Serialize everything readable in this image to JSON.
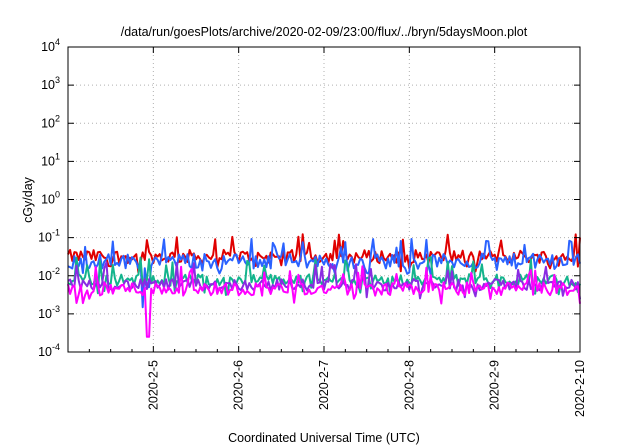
{
  "chart_data": {
    "type": "line",
    "title": "/data/run/goesPlots/archive/2020-02-09/23:00/flux/../bryn/5daysMoon.plot",
    "xlabel": "Coordinated Universal Time (UTC)",
    "ylabel": "cGy/day",
    "y_scale": "log",
    "ylim": [
      0.0001,
      10000
    ],
    "xlim": [
      "2020-02-04T00:00",
      "2020-02-10T00:00"
    ],
    "grid": true,
    "x_ticks": [
      "2020-2-5",
      "2020-2-6",
      "2020-2-7",
      "2020-2-8",
      "2020-2-9",
      "2020-2-10"
    ],
    "y_ticks": [
      {
        "base": "10",
        "exp": "-4"
      },
      {
        "base": "10",
        "exp": "-3"
      },
      {
        "base": "10",
        "exp": "-2"
      },
      {
        "base": "10",
        "exp": "-1"
      },
      {
        "base": "10",
        "exp": "0"
      },
      {
        "base": "10",
        "exp": "1"
      },
      {
        "base": "10",
        "exp": "2"
      },
      {
        "base": "10",
        "exp": "3"
      },
      {
        "base": "10",
        "exp": "4"
      }
    ],
    "series": [
      {
        "color": "#e00000",
        "base": 0.032,
        "spread": 0.35,
        "dips": [
          [
            "2020-02-04T20:00",
            0.012
          ]
        ]
      },
      {
        "color": "#2a62ff",
        "base": 0.024,
        "spread": 0.4,
        "dips": [
          [
            "2020-02-04T21:00",
            0.0015
          ],
          [
            "2020-02-04T22:30",
            0.005
          ]
        ]
      },
      {
        "color": "#14b48c",
        "base": 0.0078,
        "spread": 0.3,
        "dips": []
      },
      {
        "color": "#8a2be2",
        "base": 0.0058,
        "spread": 0.3,
        "dips": []
      },
      {
        "color": "#ff00ff",
        "base": 0.0045,
        "spread": 0.35,
        "dips": [
          [
            "2020-02-04T22:30",
            0.00025
          ]
        ]
      }
    ]
  }
}
